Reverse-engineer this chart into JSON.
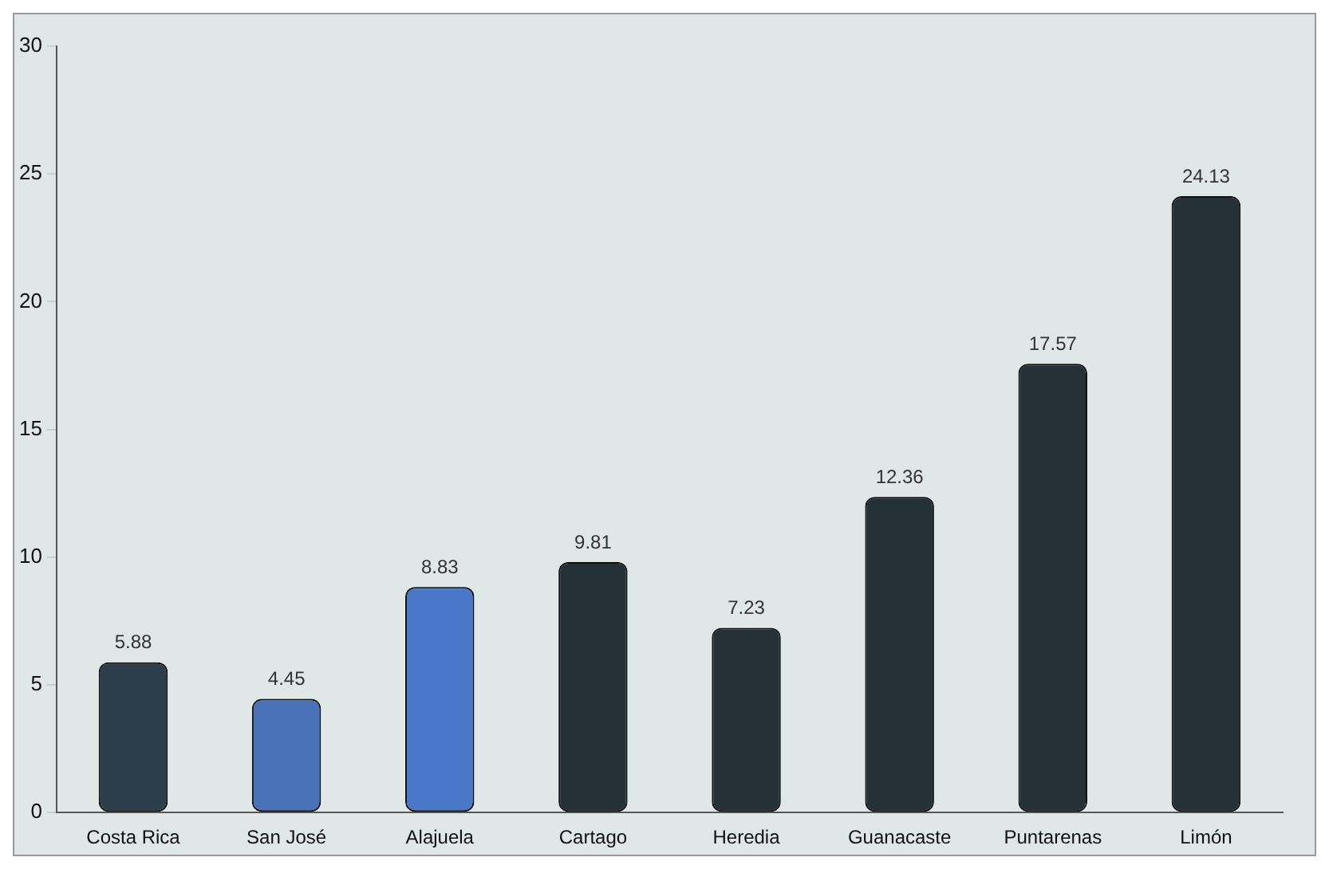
{
  "chart_data": {
    "type": "bar",
    "categories": [
      "Costa Rica",
      "San José",
      "Alajuela",
      "Cartago",
      "Heredia",
      "Guanacaste",
      "Puntarenas",
      "Limón"
    ],
    "values": [
      5.88,
      4.45,
      8.83,
      9.81,
      7.23,
      12.36,
      17.57,
      24.13
    ],
    "colors": [
      "#2c3e4c",
      "#4a72b8",
      "#4a78c8",
      "#243238",
      "#243238",
      "#243238",
      "#243238",
      "#243238"
    ],
    "ylim": [
      0,
      30
    ],
    "yticks": [
      0,
      5,
      10,
      15,
      20,
      25,
      30
    ],
    "data_labels": true,
    "grid": false,
    "legend": false
  }
}
